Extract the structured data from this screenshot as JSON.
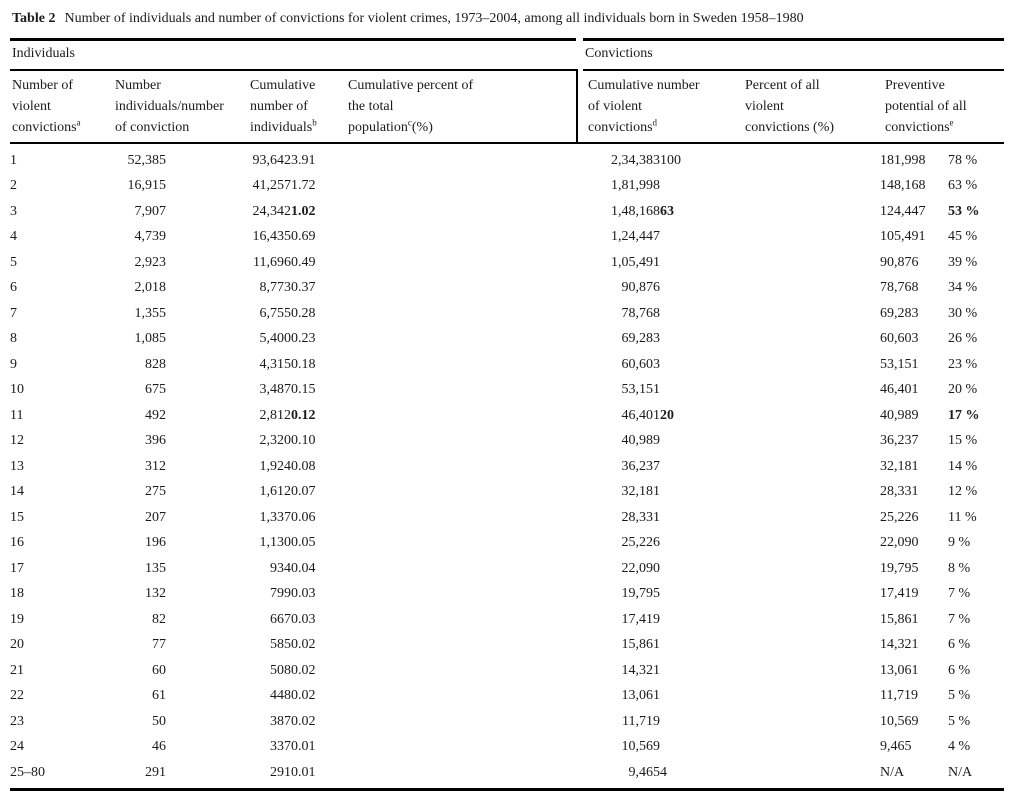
{
  "caption": {
    "label": "Table 2",
    "text": "Number of individuals and number of convictions for violent crimes, 1973–2004, among all individuals born in Sweden 1958–1980"
  },
  "groups": {
    "left": "Individuals",
    "right": "Convictions"
  },
  "table": {
    "columns": [
      {
        "key": "num-violent-convictions",
        "lines": [
          [
            {
              "text": "Number of"
            }
          ],
          [
            {
              "text": "violent"
            }
          ],
          [
            {
              "text": "convictions"
            },
            {
              "sup": "a"
            }
          ]
        ]
      },
      {
        "key": "num-individuals",
        "lines": [
          [
            {
              "text": "Number"
            }
          ],
          [
            {
              "text": "individuals/number"
            }
          ],
          [
            {
              "text": "of conviction"
            }
          ]
        ]
      },
      {
        "key": "cum-individuals",
        "lines": [
          [
            {
              "text": "Cumulative"
            }
          ],
          [
            {
              "text": "number of"
            }
          ],
          [
            {
              "text": "individuals"
            },
            {
              "sup": "b"
            }
          ]
        ]
      },
      {
        "key": "cum-pct-population",
        "lines": [
          [
            {
              "text": "Cumulative percent of"
            }
          ],
          [
            {
              "text": "the total"
            }
          ],
          [
            {
              "text": "population"
            },
            {
              "sup": "c"
            },
            {
              "text": "(%)"
            }
          ]
        ]
      },
      {
        "key": "cum-violent-convictions",
        "lines": [
          [
            {
              "text": "Cumulative number"
            }
          ],
          [
            {
              "text": "of violent"
            }
          ],
          [
            {
              "text": "convictions"
            },
            {
              "sup": "d"
            }
          ]
        ]
      },
      {
        "key": "pct-all-convictions",
        "lines": [
          [
            {
              "text": "Percent of all"
            }
          ],
          [
            {
              "text": "violent"
            }
          ],
          [
            {
              "text": "convictions (%)"
            }
          ]
        ]
      },
      {
        "key": "preventive-potential",
        "lines": [
          [
            {
              "text": "Preventive"
            }
          ],
          [
            {
              "text": "potential of all"
            }
          ],
          [
            {
              "text": "convictions"
            },
            {
              "sup": "e"
            }
          ]
        ]
      }
    ],
    "cell_keys": [
      "num-violent-convictions",
      "num-individuals",
      "cum-individuals",
      "cum-pct-population",
      "cum-violent-convictions",
      "pct-all-convictions",
      "preventive-number",
      "preventive-percent"
    ],
    "rows": [
      {
        "cells": [
          "1",
          "52,385",
          "93,642",
          "3.91",
          "2,34,383",
          "100",
          "181,998",
          "78 %"
        ],
        "bold": []
      },
      {
        "cells": [
          "2",
          "16,915",
          "41,257",
          "1.72",
          "1,81,998",
          "",
          "148,168",
          "63 %"
        ],
        "bold": []
      },
      {
        "cells": [
          "3",
          "7,907",
          "24,342",
          "1.02",
          "1,48,168",
          "63",
          "124,447",
          "53 %"
        ],
        "bold": [
          3,
          5,
          7
        ]
      },
      {
        "cells": [
          "4",
          "4,739",
          "16,435",
          "0.69",
          "1,24,447",
          "",
          "105,491",
          "45 %"
        ],
        "bold": []
      },
      {
        "cells": [
          "5",
          "2,923",
          "11,696",
          "0.49",
          "1,05,491",
          "",
          "90,876",
          "39 %"
        ],
        "bold": []
      },
      {
        "cells": [
          "6",
          "2,018",
          "8,773",
          "0.37",
          "90,876",
          "",
          "78,768",
          "34 %"
        ],
        "bold": []
      },
      {
        "cells": [
          "7",
          "1,355",
          "6,755",
          "0.28",
          "78,768",
          "",
          "69,283",
          "30 %"
        ],
        "bold": []
      },
      {
        "cells": [
          "8",
          "1,085",
          "5,400",
          "0.23",
          "69,283",
          "",
          "60,603",
          "26 %"
        ],
        "bold": []
      },
      {
        "cells": [
          "9",
          "828",
          "4,315",
          "0.18",
          "60,603",
          "",
          "53,151",
          "23 %"
        ],
        "bold": []
      },
      {
        "cells": [
          "10",
          "675",
          "3,487",
          "0.15",
          "53,151",
          "",
          "46,401",
          "20 %"
        ],
        "bold": []
      },
      {
        "cells": [
          "11",
          "492",
          "2,812",
          "0.12",
          "46,401",
          "20",
          "40,989",
          "17 %"
        ],
        "bold": [
          3,
          5,
          7
        ]
      },
      {
        "cells": [
          "12",
          "396",
          "2,320",
          "0.10",
          "40,989",
          "",
          "36,237",
          "15 %"
        ],
        "bold": []
      },
      {
        "cells": [
          "13",
          "312",
          "1,924",
          "0.08",
          "36,237",
          "",
          "32,181",
          "14 %"
        ],
        "bold": []
      },
      {
        "cells": [
          "14",
          "275",
          "1,612",
          "0.07",
          "32,181",
          "",
          "28,331",
          "12 %"
        ],
        "bold": []
      },
      {
        "cells": [
          "15",
          "207",
          "1,337",
          "0.06",
          "28,331",
          "",
          "25,226",
          "11 %"
        ],
        "bold": []
      },
      {
        "cells": [
          "16",
          "196",
          "1,130",
          "0.05",
          "25,226",
          "",
          "22,090",
          "9 %"
        ],
        "bold": []
      },
      {
        "cells": [
          "17",
          "135",
          "934",
          "0.04",
          "22,090",
          "",
          "19,795",
          "8 %"
        ],
        "bold": []
      },
      {
        "cells": [
          "18",
          "132",
          "799",
          "0.03",
          "19,795",
          "",
          "17,419",
          "7 %"
        ],
        "bold": []
      },
      {
        "cells": [
          "19",
          "82",
          "667",
          "0.03",
          "17,419",
          "",
          "15,861",
          "7 %"
        ],
        "bold": []
      },
      {
        "cells": [
          "20",
          "77",
          "585",
          "0.02",
          "15,861",
          "",
          "14,321",
          "6 %"
        ],
        "bold": []
      },
      {
        "cells": [
          "21",
          "60",
          "508",
          "0.02",
          "14,321",
          "",
          "13,061",
          "6 %"
        ],
        "bold": []
      },
      {
        "cells": [
          "22",
          "61",
          "448",
          "0.02",
          "13,061",
          "",
          "11,719",
          "5 %"
        ],
        "bold": []
      },
      {
        "cells": [
          "23",
          "50",
          "387",
          "0.02",
          "11,719",
          "",
          "10,569",
          "5 %"
        ],
        "bold": []
      },
      {
        "cells": [
          "24",
          "46",
          "337",
          "0.01",
          "10,569",
          "",
          "9,465",
          "4 %"
        ],
        "bold": []
      },
      {
        "cells": [
          "25–80",
          "291",
          "291",
          "0.01",
          "9,465",
          "4",
          "N/A",
          "N/A"
        ],
        "bold": []
      }
    ]
  }
}
